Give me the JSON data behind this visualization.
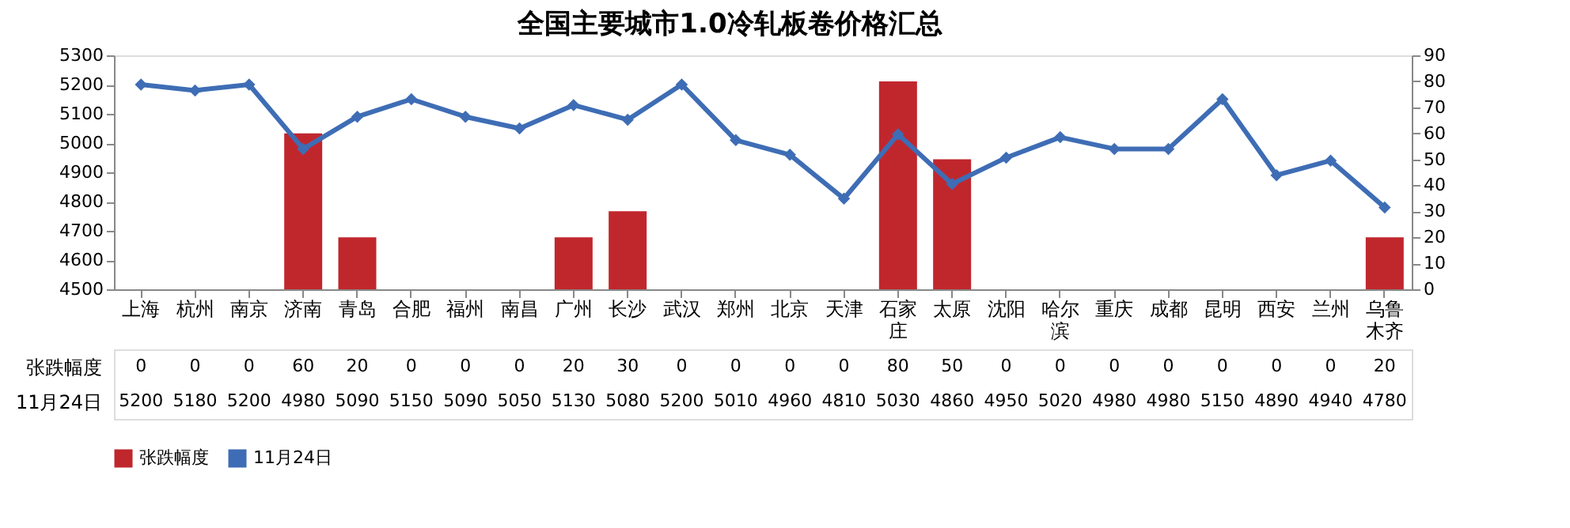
{
  "chart_data": {
    "type": "bar",
    "title": "全国主要城市1.0冷轧板卷价格汇总",
    "categories": [
      "上海",
      "杭州",
      "南京",
      "济南",
      "青岛",
      "合肥",
      "福州",
      "南昌",
      "广州",
      "长沙",
      "武汉",
      "郑州",
      "北京",
      "天津",
      "石家庄",
      "太原",
      "沈阳",
      "哈尔滨",
      "重庆",
      "成都",
      "昆明",
      "西安",
      "兰州",
      "乌鲁木齐"
    ],
    "series": [
      {
        "name": "张跌幅度",
        "axis": "y2",
        "color": "#c0272d",
        "values": [
          0,
          0,
          0,
          60,
          20,
          0,
          0,
          0,
          20,
          30,
          0,
          0,
          0,
          0,
          80,
          50,
          0,
          0,
          0,
          0,
          0,
          0,
          0,
          20
        ]
      },
      {
        "name": "11月24日",
        "type": "line",
        "color": "#3e6db5",
        "marker": "diamond",
        "values": [
          5200,
          5180,
          5200,
          4980,
          5090,
          5150,
          5090,
          5050,
          5130,
          5080,
          5200,
          5010,
          4960,
          4810,
          5030,
          4860,
          4950,
          5020,
          4980,
          4980,
          5150,
          4890,
          4940,
          4780
        ]
      }
    ],
    "ylim": [
      4500,
      5300
    ],
    "yticks": [
      4500,
      4600,
      4700,
      4800,
      4900,
      5000,
      5100,
      5200,
      5300
    ],
    "y2lim": [
      0,
      90
    ],
    "y2ticks": [
      0,
      10,
      20,
      30,
      40,
      50,
      60,
      70,
      80,
      90
    ],
    "grid": false,
    "legend": "bottom",
    "data_labels": true
  }
}
